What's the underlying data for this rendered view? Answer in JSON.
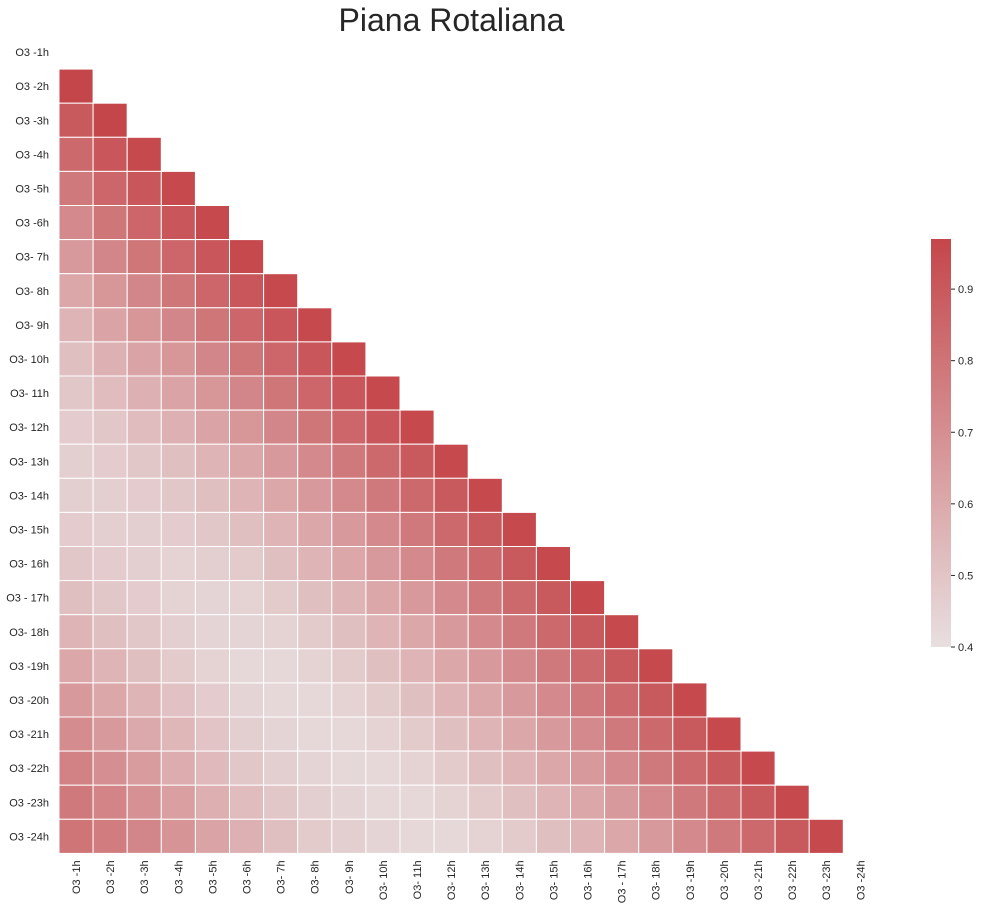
{
  "chart_data": {
    "type": "heatmap",
    "title": "Piana Rotaliana",
    "labels": [
      "O3 -1h",
      "O3 -2h",
      "O3 -3h",
      "O3 -4h",
      "O3 -5h",
      "O3 -6h",
      "O3- 7h",
      "O3- 8h",
      "O3- 9h",
      "O3- 10h",
      "O3- 11h",
      "O3- 12h",
      "O3- 13h",
      "O3- 14h",
      "O3- 15h",
      "O3- 16h",
      "O3 - 17h",
      "O3- 18h",
      "O3 -19h",
      "O3 -20h",
      "O3 -21h",
      "O3 -22h",
      "O3 -23h",
      "O3 -24h"
    ],
    "mask": "upper-triangle-including-diagonal",
    "colorbar": {
      "min": 0.4,
      "max": 0.97,
      "ticks": [
        0.4,
        0.5,
        0.6,
        0.7,
        0.8,
        0.9
      ],
      "tick_labels": [
        "0.4",
        "0.5",
        "0.6",
        "0.7",
        "0.8",
        "0.9"
      ],
      "placement": "right"
    },
    "colors": {
      "low": "#e8dfe0",
      "high": "#c4464a",
      "gridline": "#ffffff"
    },
    "lower_triangle_rows": [
      [],
      [
        0.97
      ],
      [
        0.9,
        0.97
      ],
      [
        0.84,
        0.91,
        0.96
      ],
      [
        0.78,
        0.85,
        0.91,
        0.96
      ],
      [
        0.72,
        0.79,
        0.85,
        0.91,
        0.96
      ],
      [
        0.66,
        0.73,
        0.79,
        0.85,
        0.91,
        0.96
      ],
      [
        0.61,
        0.67,
        0.73,
        0.79,
        0.85,
        0.91,
        0.96
      ],
      [
        0.56,
        0.62,
        0.67,
        0.73,
        0.79,
        0.85,
        0.91,
        0.96
      ],
      [
        0.52,
        0.57,
        0.62,
        0.67,
        0.73,
        0.79,
        0.85,
        0.91,
        0.96
      ],
      [
        0.49,
        0.53,
        0.57,
        0.62,
        0.67,
        0.73,
        0.79,
        0.85,
        0.91,
        0.96
      ],
      [
        0.47,
        0.49,
        0.53,
        0.57,
        0.62,
        0.67,
        0.73,
        0.79,
        0.85,
        0.91,
        0.96
      ],
      [
        0.46,
        0.47,
        0.49,
        0.52,
        0.56,
        0.61,
        0.66,
        0.72,
        0.78,
        0.84,
        0.9,
        0.96
      ],
      [
        0.46,
        0.46,
        0.47,
        0.49,
        0.52,
        0.56,
        0.61,
        0.66,
        0.72,
        0.78,
        0.84,
        0.9,
        0.96
      ],
      [
        0.47,
        0.46,
        0.46,
        0.47,
        0.49,
        0.52,
        0.56,
        0.61,
        0.66,
        0.72,
        0.78,
        0.84,
        0.9,
        0.96
      ],
      [
        0.49,
        0.47,
        0.46,
        0.45,
        0.46,
        0.48,
        0.52,
        0.56,
        0.61,
        0.66,
        0.72,
        0.78,
        0.84,
        0.9,
        0.96
      ],
      [
        0.52,
        0.49,
        0.47,
        0.45,
        0.44,
        0.45,
        0.48,
        0.52,
        0.56,
        0.61,
        0.66,
        0.72,
        0.78,
        0.84,
        0.9,
        0.96
      ],
      [
        0.56,
        0.52,
        0.49,
        0.46,
        0.44,
        0.44,
        0.45,
        0.48,
        0.52,
        0.56,
        0.61,
        0.66,
        0.72,
        0.78,
        0.84,
        0.9,
        0.96
      ],
      [
        0.61,
        0.56,
        0.52,
        0.48,
        0.45,
        0.43,
        0.43,
        0.45,
        0.48,
        0.52,
        0.56,
        0.61,
        0.66,
        0.72,
        0.78,
        0.84,
        0.9,
        0.96
      ],
      [
        0.66,
        0.61,
        0.56,
        0.51,
        0.47,
        0.44,
        0.43,
        0.43,
        0.45,
        0.48,
        0.52,
        0.56,
        0.61,
        0.66,
        0.72,
        0.78,
        0.84,
        0.9,
        0.96
      ],
      [
        0.71,
        0.66,
        0.6,
        0.55,
        0.5,
        0.46,
        0.44,
        0.43,
        0.43,
        0.45,
        0.48,
        0.52,
        0.56,
        0.61,
        0.66,
        0.72,
        0.78,
        0.84,
        0.9,
        0.96
      ],
      [
        0.75,
        0.7,
        0.65,
        0.59,
        0.54,
        0.49,
        0.46,
        0.44,
        0.43,
        0.43,
        0.45,
        0.48,
        0.52,
        0.56,
        0.61,
        0.66,
        0.72,
        0.78,
        0.84,
        0.9,
        0.96
      ],
      [
        0.78,
        0.74,
        0.69,
        0.64,
        0.58,
        0.53,
        0.49,
        0.46,
        0.44,
        0.43,
        0.43,
        0.45,
        0.48,
        0.52,
        0.56,
        0.61,
        0.66,
        0.72,
        0.78,
        0.84,
        0.9,
        0.96
      ],
      [
        0.8,
        0.77,
        0.73,
        0.68,
        0.62,
        0.57,
        0.52,
        0.48,
        0.46,
        0.44,
        0.43,
        0.43,
        0.45,
        0.48,
        0.52,
        0.56,
        0.61,
        0.66,
        0.72,
        0.78,
        0.84,
        0.9,
        0.96
      ]
    ]
  }
}
